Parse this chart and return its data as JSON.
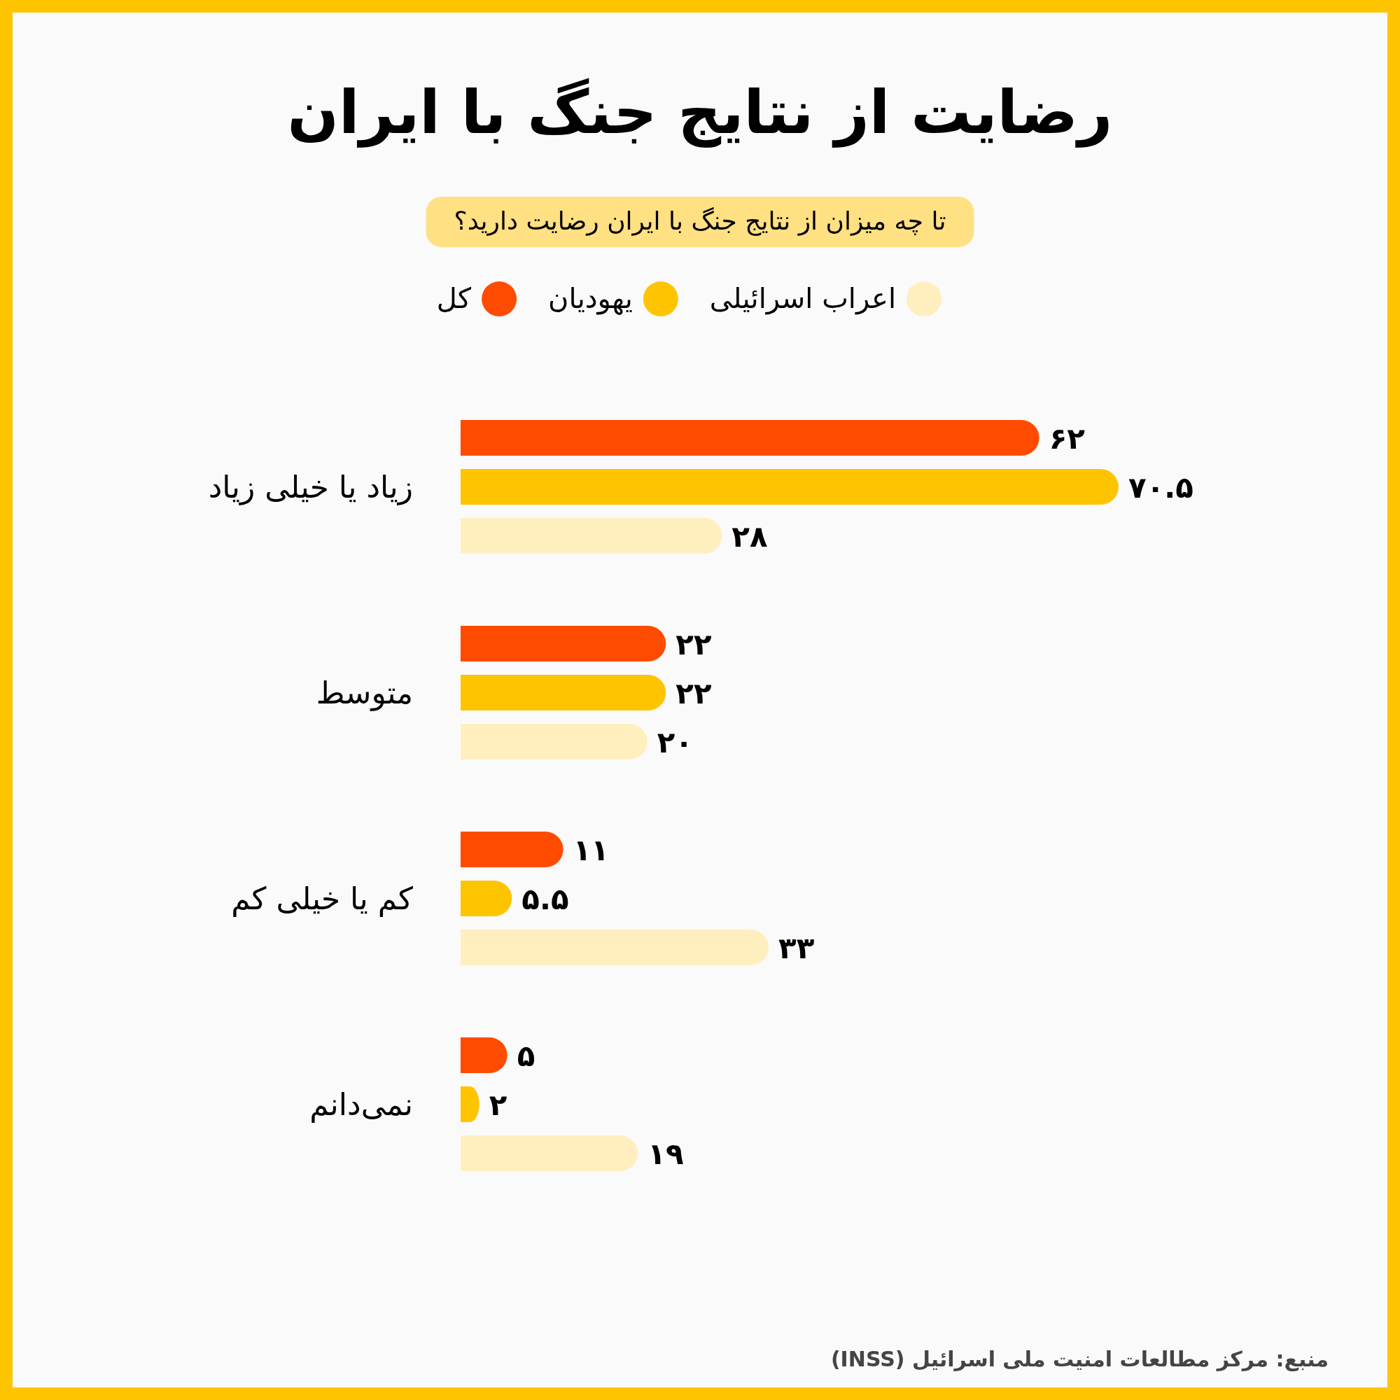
{
  "chart_data": {
    "type": "bar",
    "orientation": "horizontal",
    "title": "رضایت از نتایج جنگ با ایران",
    "subtitle": "تا چه میزان از نتایج جنگ با ایران رضایت دارید؟",
    "legend": "top",
    "categories": [
      "زیاد یا خیلی زیاد",
      "متوسط",
      "کم یا خیلی کم",
      "نمی‌دانم"
    ],
    "series": [
      {
        "name": "کل",
        "color": "#ff4b00",
        "values": [
          62,
          22,
          11,
          5
        ],
        "value_labels": [
          "۶۲",
          "۲۲",
          "۱۱",
          "۵"
        ]
      },
      {
        "name": "یهودیان",
        "color": "#ffc400",
        "values": [
          70.5,
          22,
          5.5,
          2
        ],
        "value_labels": [
          "۷۰.۵",
          "۲۲",
          "۵.۵",
          "۲"
        ]
      },
      {
        "name": "اعراب اسرائیلی",
        "color": "#ffefbf",
        "values": [
          28,
          20,
          33,
          19
        ],
        "value_labels": [
          "۲۸",
          "۲۰",
          "۳۳",
          "۱۹"
        ]
      }
    ],
    "annotations": [
      "منبع: مرکز مطالعات امنیت ملی اسرائیل (INSS)"
    ]
  }
}
